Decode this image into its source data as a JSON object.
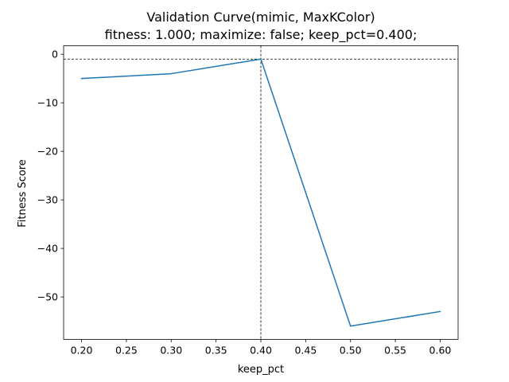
{
  "chart_data": {
    "type": "line",
    "title": "Validation Curve(mimic, MaxKColor)",
    "subtitle": "fitness: 1.000; maximize: false; keep_pct=0.400;",
    "xlabel": "keep_pct",
    "ylabel": "Fitness Score",
    "x": [
      0.2,
      0.3,
      0.4,
      0.5,
      0.6
    ],
    "series": [
      {
        "values": [
          -5,
          -4,
          -1,
          -56,
          -53
        ],
        "color": "#1f77b4"
      }
    ],
    "xlim": [
      0.18,
      0.62
    ],
    "ylim": [
      -58.75,
      1.75
    ],
    "xticks": [
      0.2,
      0.25,
      0.3,
      0.35,
      0.4,
      0.45,
      0.5,
      0.55,
      0.6
    ],
    "xtick_labels": [
      "0.20",
      "0.25",
      "0.30",
      "0.35",
      "0.40",
      "0.45",
      "0.50",
      "0.55",
      "0.60"
    ],
    "yticks": [
      0,
      -10,
      -20,
      -30,
      -40,
      -50
    ],
    "ytick_labels": [
      "0",
      "−10",
      "−20",
      "−30",
      "−40",
      "−50"
    ],
    "reference_lines": {
      "x": 0.4,
      "y": -1,
      "style": "dashed",
      "color": "#000000"
    },
    "grid": false,
    "legend": "none"
  }
}
